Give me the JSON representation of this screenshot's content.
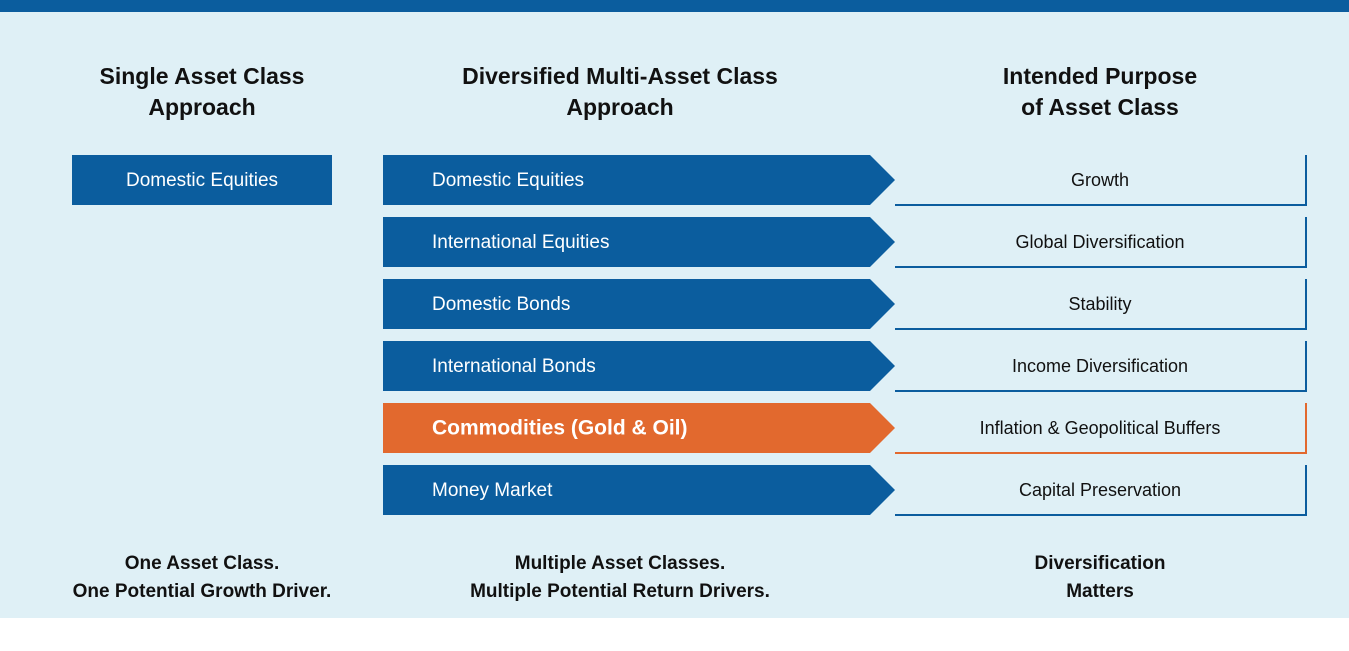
{
  "columns": [
    {
      "heading": [
        "Single Asset Class",
        "Approach"
      ],
      "footer": [
        "One Asset Class.",
        "One Potential Growth Driver."
      ]
    },
    {
      "heading": [
        "Diversified Multi-Asset Class",
        "Approach"
      ],
      "footer": [
        "Multiple Asset Classes.",
        "Multiple Potential Return Drivers."
      ]
    },
    {
      "heading": [
        "Intended Purpose",
        "of Asset Class"
      ],
      "footer": [
        "Diversification",
        "Matters"
      ]
    }
  ],
  "single_box": "Domestic Equities",
  "rows": [
    {
      "asset": "Domestic Equities",
      "purpose": "Growth",
      "color": "#0b5d9e"
    },
    {
      "asset": "International Equities",
      "purpose": "Global Diversification",
      "color": "#0b5d9e"
    },
    {
      "asset": "Domestic Bonds",
      "purpose": "Stability",
      "color": "#0b5d9e"
    },
    {
      "asset": "International Bonds",
      "purpose": "Income Diversification",
      "color": "#0b5d9e"
    },
    {
      "asset": "Commodities (Gold & Oil)",
      "purpose": "Inflation & Geopolitical Buffers",
      "color": "#e2692e"
    },
    {
      "asset": "Money Market",
      "purpose": "Capital Preservation",
      "color": "#0b5d9e"
    }
  ]
}
